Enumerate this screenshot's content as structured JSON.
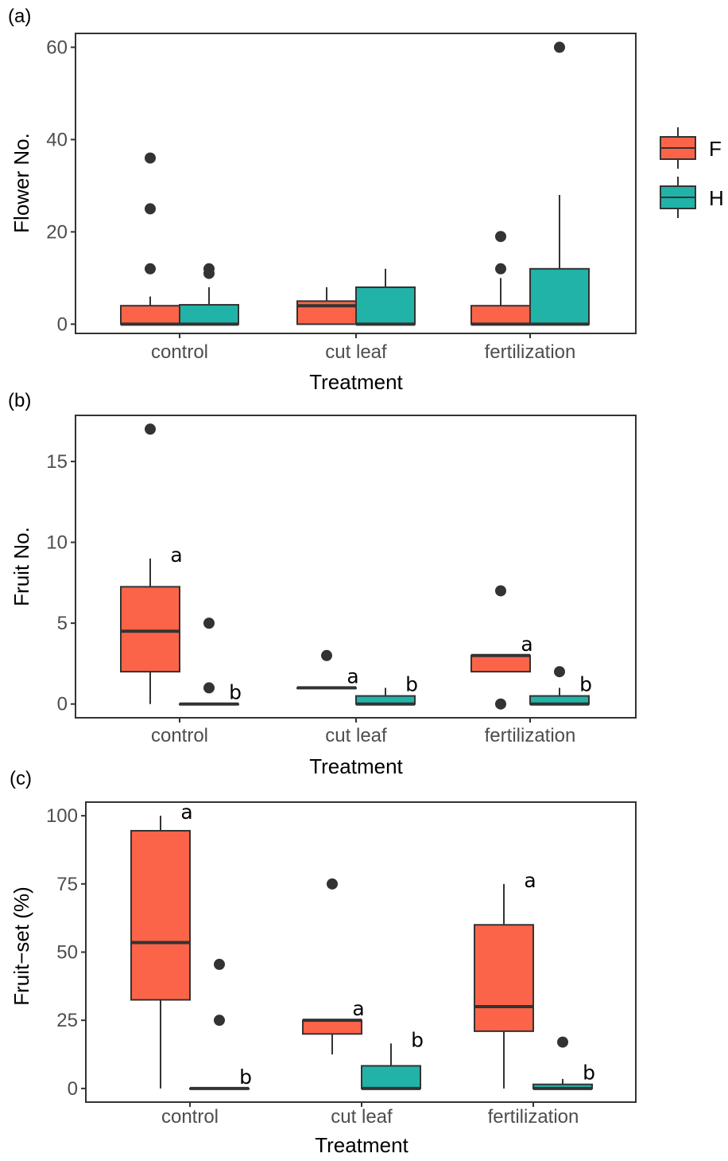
{
  "colors": {
    "F": "#fc6449",
    "H": "#21b3a7",
    "line": "#333333"
  },
  "legend": {
    "position": "right",
    "items": [
      {
        "key": "F",
        "label": "F"
      },
      {
        "key": "H",
        "label": "H"
      }
    ]
  },
  "chart_data": [
    {
      "type": "boxplot",
      "panel_label": "(a)",
      "xlabel": "Treatment",
      "ylabel": "Flower No.",
      "categories": [
        "control",
        "cut leaf",
        "fertilization"
      ],
      "ylim": [
        -2,
        63
      ],
      "yticks": [
        0,
        20,
        40,
        60
      ],
      "grid": false,
      "series": [
        {
          "name": "F",
          "boxes": [
            {
              "q1": 0,
              "median": 0,
              "q3": 4,
              "whisker_low": 0,
              "whisker_high": 6,
              "outliers": [
                12,
                25,
                36
              ],
              "label": ""
            },
            {
              "q1": 0,
              "median": 4,
              "q3": 5,
              "whisker_low": 0,
              "whisker_high": 8,
              "outliers": [],
              "label": ""
            },
            {
              "q1": 0,
              "median": 0,
              "q3": 4,
              "whisker_low": 0,
              "whisker_high": 10,
              "outliers": [
                12,
                19
              ],
              "label": ""
            }
          ]
        },
        {
          "name": "H",
          "boxes": [
            {
              "q1": 0,
              "median": 0,
              "q3": 4.2,
              "whisker_low": 0,
              "whisker_high": 8,
              "outliers": [
                11,
                12
              ],
              "label": ""
            },
            {
              "q1": 0,
              "median": 0,
              "q3": 8,
              "whisker_low": 0,
              "whisker_high": 12,
              "outliers": [],
              "label": ""
            },
            {
              "q1": 0,
              "median": 0,
              "q3": 12,
              "whisker_low": 0,
              "whisker_high": 28,
              "outliers": [
                60
              ],
              "label": ""
            }
          ]
        }
      ]
    },
    {
      "type": "boxplot",
      "panel_label": "(b)",
      "xlabel": "Treatment",
      "ylabel": "Fruit No.",
      "categories": [
        "control",
        "cut leaf",
        "fertilization"
      ],
      "ylim": [
        -0.85,
        17.85
      ],
      "yticks": [
        0,
        5,
        10,
        15
      ],
      "grid": false,
      "series": [
        {
          "name": "F",
          "boxes": [
            {
              "q1": 2,
              "median": 4.5,
              "q3": 7.25,
              "whisker_low": 0,
              "whisker_high": 9,
              "outliers": [
                17
              ],
              "label": "a"
            },
            {
              "q1": 1,
              "median": 1,
              "q3": 1,
              "whisker_low": 1,
              "whisker_high": 1,
              "outliers": [
                3
              ],
              "label": "a"
            },
            {
              "q1": 2,
              "median": 3,
              "q3": 3,
              "whisker_low": 2,
              "whisker_high": 3,
              "outliers": [
                0,
                7
              ],
              "label": "a"
            }
          ]
        },
        {
          "name": "H",
          "boxes": [
            {
              "q1": 0,
              "median": 0,
              "q3": 0,
              "whisker_low": 0,
              "whisker_high": 0,
              "outliers": [
                1,
                5
              ],
              "label": "b"
            },
            {
              "q1": 0,
              "median": 0,
              "q3": 0.5,
              "whisker_low": 0,
              "whisker_high": 1,
              "outliers": [],
              "label": "b"
            },
            {
              "q1": 0,
              "median": 0,
              "q3": 0.5,
              "whisker_low": 0,
              "whisker_high": 1,
              "outliers": [
                2
              ],
              "label": "b"
            }
          ]
        }
      ]
    },
    {
      "type": "boxplot",
      "panel_label": "(c)",
      "xlabel": "Treatment",
      "ylabel": "Fruit−set (%)",
      "categories": [
        "control",
        "cut leaf",
        "fertilization"
      ],
      "ylim": [
        -5,
        105
      ],
      "yticks": [
        0,
        25,
        50,
        75,
        100
      ],
      "grid": false,
      "series": [
        {
          "name": "F",
          "boxes": [
            {
              "q1": 32.5,
              "median": 53.5,
              "q3": 94.5,
              "whisker_low": 0,
              "whisker_high": 100,
              "outliers": [],
              "label": "a"
            },
            {
              "q1": 20,
              "median": 25,
              "q3": 25,
              "whisker_low": 12.5,
              "whisker_high": 25,
              "outliers": [
                75
              ],
              "label": "a"
            },
            {
              "q1": 21,
              "median": 30,
              "q3": 60,
              "whisker_low": 0,
              "whisker_high": 75,
              "outliers": [],
              "label": "a"
            }
          ]
        },
        {
          "name": "H",
          "boxes": [
            {
              "q1": 0,
              "median": 0,
              "q3": 0,
              "whisker_low": 0,
              "whisker_high": 0,
              "outliers": [
                25,
                45.5
              ],
              "label": "b"
            },
            {
              "q1": 0,
              "median": 0,
              "q3": 8.3,
              "whisker_low": 0,
              "whisker_high": 16.5,
              "outliers": [],
              "label": "b"
            },
            {
              "q1": 0,
              "median": 0,
              "q3": 1.5,
              "whisker_low": 0,
              "whisker_high": 3.5,
              "outliers": [
                17
              ],
              "label": "b"
            }
          ]
        }
      ]
    }
  ]
}
